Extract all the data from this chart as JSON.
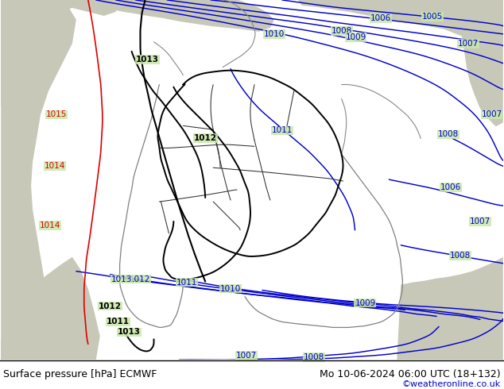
{
  "title_left": "Surface pressure [hPa] ECMWF",
  "title_right": "Mo 10-06-2024 06:00 UTC (18+132)",
  "credit": "©weatheronline.co.uk",
  "bg_color_ocean": "#b8cfe0",
  "bg_color_land_green": "#c8e8a8",
  "bg_color_land_gray": "#c8c8b8",
  "bg_color_white_gray": "#d8d8cc",
  "contour_color_blue": "#0000cc",
  "contour_color_black": "#000000",
  "contour_color_red": "#dd0000",
  "border_color_dark": "#202020",
  "border_color_gray": "#888888",
  "bottom_bar_bg": "#ffffff",
  "text_color_left": "#000000",
  "text_color_right": "#000000",
  "text_color_credit": "#0000cc",
  "font_size_bottom": 9,
  "figwidth": 6.34,
  "figheight": 4.9,
  "dpi": 100
}
